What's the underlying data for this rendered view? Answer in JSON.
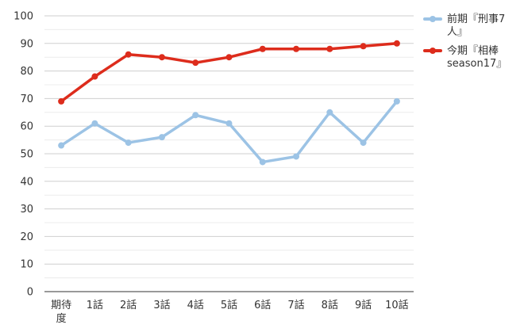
{
  "chart_data": {
    "type": "line",
    "categories": [
      "期待度",
      "1話",
      "2話",
      "3話",
      "4話",
      "5話",
      "6話",
      "7話",
      "8話",
      "9話",
      "10話"
    ],
    "series": [
      {
        "name": "前期『刑事7人』",
        "color": "#9cc3e5",
        "values": [
          53,
          61,
          54,
          56,
          64,
          61,
          47,
          49,
          65,
          54,
          69
        ]
      },
      {
        "name": "今期『相棒season17』",
        "color": "#dd2c1c",
        "values": [
          69,
          78,
          86,
          85,
          83,
          85,
          88,
          88,
          88,
          89,
          90
        ]
      }
    ],
    "ylim": [
      0,
      100
    ],
    "yticks": [
      0,
      10,
      20,
      30,
      40,
      50,
      60,
      70,
      80,
      90,
      100
    ],
    "grid": true,
    "legend_position": "right"
  }
}
